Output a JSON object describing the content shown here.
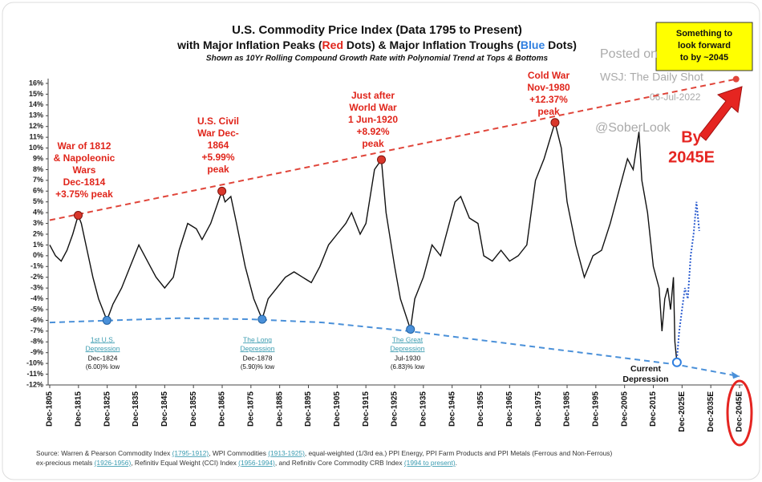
{
  "chart_data": {
    "type": "line",
    "title": "U.S. Commodity Price Index (Data 1795 to Present)",
    "title_line2": [
      "with Major Inflation Peaks (",
      "Red",
      " Dots) & Major Inflation Troughs (",
      "Blue",
      " Dots)"
    ],
    "subtitle": "Shown as 10Yr Rolling Compound Growth Rate with Polynomial Trend  at Tops & Bottoms",
    "watermarks": [
      "Posted on",
      "WSJ: The Daily Shot",
      "06-Jul-2022",
      "@SoberLook"
    ],
    "callout": [
      "Something to",
      "look forward",
      "to by ~2045"
    ],
    "by_label": [
      "By",
      "2045E"
    ],
    "source": [
      [
        "Source: Warren & Pearson Commodity Index ",
        "(1795-1912)",
        ", WPI Commodities ",
        "(1913-1925)",
        ", equal-weighted (1/3rd ea.) PPI Energy, PPI Farm Products and PPI Metals (Ferrous and Non-Ferrous)"
      ],
      [
        "ex-precious metals ",
        "(1926-1956)",
        ", Refinitiv Equal Weight (CCI) Index ",
        "(1956-1994)",
        ", and Refinitiv Core Commodity CRB Index ",
        "(1994 to present)",
        "."
      ]
    ],
    "xlim": [
      1805,
      2045
    ],
    "xticks": [
      {
        "value": 1805,
        "label": "Dec-1805"
      },
      {
        "value": 1815,
        "label": "Dec-1815"
      },
      {
        "value": 1825,
        "label": "Dec-1825"
      },
      {
        "value": 1835,
        "label": "Dec-1835"
      },
      {
        "value": 1845,
        "label": "Dec-1845"
      },
      {
        "value": 1855,
        "label": "Dec-1855"
      },
      {
        "value": 1865,
        "label": "Dec-1865"
      },
      {
        "value": 1875,
        "label": "Dec-1875"
      },
      {
        "value": 1885,
        "label": "Dec-1885"
      },
      {
        "value": 1895,
        "label": "Dec-1895"
      },
      {
        "value": 1905,
        "label": "Dec-1905"
      },
      {
        "value": 1915,
        "label": "Dec-1915"
      },
      {
        "value": 1925,
        "label": "Dec-1925"
      },
      {
        "value": 1935,
        "label": "Dec-1935"
      },
      {
        "value": 1945,
        "label": "Dec-1945"
      },
      {
        "value": 1955,
        "label": "Dec-1955"
      },
      {
        "value": 1965,
        "label": "Dec-1965"
      },
      {
        "value": 1975,
        "label": "Dec-1975"
      },
      {
        "value": 1985,
        "label": "Dec-1985"
      },
      {
        "value": 1995,
        "label": "Dec-1995"
      },
      {
        "value": 2005,
        "label": "Dec-2005"
      },
      {
        "value": 2015,
        "label": "Dec-2015"
      },
      {
        "value": 2025,
        "label": "Dec-2025E"
      },
      {
        "value": 2035,
        "label": "Dec-2035E"
      },
      {
        "value": 2045,
        "label": "Dec-2045E"
      }
    ],
    "ylim": [
      -12,
      16
    ],
    "yticks": [
      {
        "value": 16,
        "label": "16%"
      },
      {
        "value": 15,
        "label": "15%"
      },
      {
        "value": 14,
        "label": "14%"
      },
      {
        "value": 13,
        "label": "13%"
      },
      {
        "value": 12,
        "label": "12%"
      },
      {
        "value": 11,
        "label": "11%"
      },
      {
        "value": 10,
        "label": "10%"
      },
      {
        "value": 9,
        "label": "9%"
      },
      {
        "value": 8,
        "label": "8%"
      },
      {
        "value": 7,
        "label": "7%"
      },
      {
        "value": 6,
        "label": "6%"
      },
      {
        "value": 5,
        "label": "5%"
      },
      {
        "value": 4,
        "label": "4%"
      },
      {
        "value": 3,
        "label": "3%"
      },
      {
        "value": 2,
        "label": "2%"
      },
      {
        "value": 1,
        "label": "1%"
      },
      {
        "value": 0,
        "label": "0%"
      },
      {
        "value": -1,
        "label": "-1%"
      },
      {
        "value": -2,
        "label": "-2%"
      },
      {
        "value": -3,
        "label": "-3%"
      },
      {
        "value": -4,
        "label": "-4%"
      },
      {
        "value": -5,
        "label": "-5%"
      },
      {
        "value": -6,
        "label": "-6%"
      },
      {
        "value": -7,
        "label": "-7%"
      },
      {
        "value": -8,
        "label": "-8%"
      },
      {
        "value": -9,
        "label": "-9%"
      },
      {
        "value": -10,
        "label": "-10%"
      },
      {
        "value": -11,
        "label": "-11%"
      },
      {
        "value": -12,
        "label": "-12%"
      }
    ],
    "series": [
      {
        "color": "#111111",
        "style": "solid",
        "x": [
          1805,
          1807,
          1809,
          1811,
          1813,
          1814.9,
          1816,
          1818,
          1820,
          1822,
          1824.9,
          1827,
          1830,
          1833,
          1836,
          1838,
          1840,
          1842,
          1845,
          1848,
          1850,
          1853,
          1856,
          1858,
          1861,
          1864.9,
          1866,
          1868,
          1870,
          1873,
          1876,
          1878.9,
          1881,
          1884,
          1887,
          1890,
          1893,
          1896,
          1899,
          1902,
          1905,
          1908,
          1910,
          1913,
          1915,
          1918,
          1920.4,
          1922,
          1925,
          1927,
          1930.5,
          1932,
          1935,
          1938,
          1941,
          1944,
          1946,
          1948,
          1951,
          1954,
          1956,
          1959,
          1962,
          1965,
          1968,
          1971,
          1974,
          1977,
          1980.8,
          1983,
          1985,
          1988,
          1991,
          1994,
          1997,
          2000,
          2003,
          2006,
          2008,
          2010,
          2011,
          2013,
          2015,
          2017,
          2018,
          2019,
          2020,
          2021,
          2022,
          2022.5,
          2023.2
        ],
        "values": [
          1,
          0,
          -0.5,
          0.5,
          2,
          3.75,
          3,
          0.5,
          -2,
          -4,
          -6.0,
          -4.5,
          -3,
          -1,
          1,
          0,
          -1,
          -2,
          -3,
          -2,
          0.5,
          3,
          2.5,
          1.5,
          3,
          5.99,
          5,
          5.5,
          3,
          -1,
          -4,
          -5.9,
          -4,
          -3,
          -2,
          -1.5,
          -2,
          -2.5,
          -1,
          1,
          2,
          3,
          4,
          2,
          3,
          8,
          8.92,
          4,
          -1,
          -4,
          -6.83,
          -4,
          -2,
          1,
          0,
          3,
          5,
          5.5,
          3.5,
          3,
          0,
          -0.5,
          0.5,
          -0.5,
          0,
          1,
          7,
          9,
          12.37,
          10,
          5,
          1,
          -2,
          0,
          0.5,
          3,
          6,
          9,
          8,
          11.5,
          7,
          4,
          -1,
          -3,
          -7,
          -4,
          -3,
          -5,
          -2,
          -8,
          -9.9
        ]
      },
      {
        "color": "#2f5fd0",
        "style": "dotted",
        "x": [
          2023.2,
          2024,
          2025,
          2026,
          2027,
          2028,
          2029,
          2030,
          2031
        ],
        "values": [
          -9.6,
          -7,
          -5,
          -3,
          -4,
          0,
          2,
          5,
          2.3
        ]
      },
      {
        "color": "#e0453a",
        "style": "dashed",
        "end_dot": true,
        "x": [
          1805,
          2043.8
        ],
        "values": [
          3.3,
          16.4
        ]
      },
      {
        "color": "#4a90d9",
        "style": "dashed",
        "end_arrow": true,
        "x": [
          1805,
          1850,
          1875,
          1900,
          1930,
          1960,
          1990,
          2023,
          2045
        ],
        "values": [
          -6.2,
          -5.8,
          -5.9,
          -6.2,
          -7,
          -8,
          -9,
          -10.1,
          -11.2
        ]
      }
    ],
    "peaks": [
      {
        "label": [
          "War of 1812",
          "& Napoleonic",
          "Wars",
          "Dec-1814",
          "+3.75% peak"
        ],
        "x": 1814.9,
        "y": 3.75
      },
      {
        "label": [
          "U.S. Civil",
          "War Dec-",
          "1864",
          "+5.99%",
          "peak"
        ],
        "x": 1864.9,
        "y": 5.99
      },
      {
        "label": [
          "Just after",
          "World War",
          "1 Jun-1920",
          "+8.92%",
          "peak"
        ],
        "x": 1920.4,
        "y": 8.92
      },
      {
        "label": [
          "Cold War",
          "Nov-1980",
          "+12.37%",
          "peak"
        ],
        "x": 1980.8,
        "y": 12.37
      }
    ],
    "troughs": [
      {
        "name": [
          "1st U.S.",
          "Depression"
        ],
        "date": "Dec-1824",
        "note": "(6.00)% low",
        "x": 1824.9,
        "y": -6.0
      },
      {
        "name": [
          "The Long",
          "Depression"
        ],
        "date": "Dec-1878",
        "note": "(5.90)% low",
        "x": 1878.9,
        "y": -5.9
      },
      {
        "name": [
          "The Great",
          "Depression"
        ],
        "date": "Jul-1930",
        "note": "(6.83)% low",
        "x": 1930.5,
        "y": -6.83
      }
    ],
    "current": {
      "label": [
        "Current",
        "Depression"
      ],
      "x": 2023.2,
      "y": -9.9
    }
  }
}
